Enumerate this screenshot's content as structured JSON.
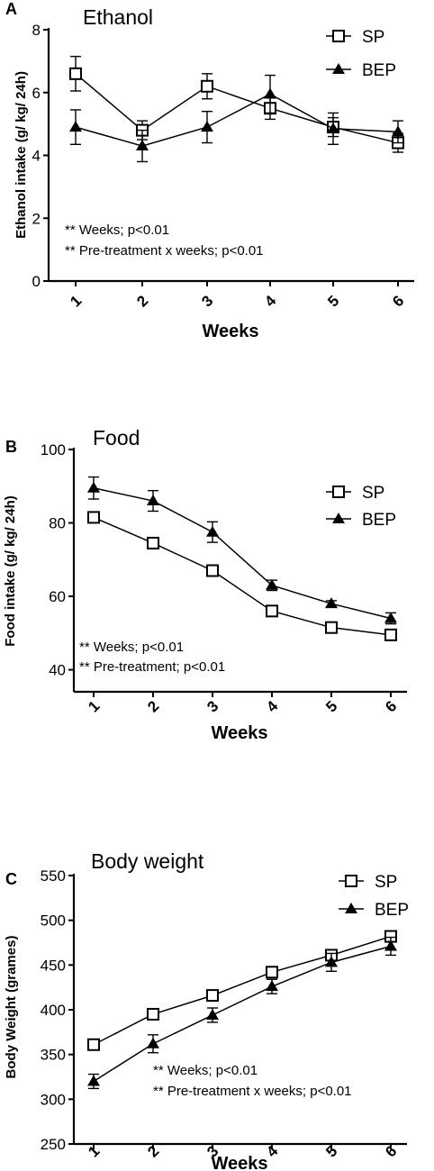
{
  "chart_data": [
    {
      "type": "line",
      "panel": "A",
      "title": "Ethanol",
      "xlabel": "Weeks",
      "ylabel": "Ethanol intake (g/ kg/ 24h)",
      "categories": [
        "1",
        "2",
        "3",
        "4",
        "5",
        "6"
      ],
      "ylim": [
        0,
        8
      ],
      "yticks": [
        "0",
        "2",
        "4",
        "6",
        "8"
      ],
      "series": [
        {
          "name": "SP",
          "values": [
            6.6,
            4.8,
            6.2,
            5.5,
            4.9,
            4.4
          ],
          "errors": [
            0.55,
            0.3,
            0.4,
            0.35,
            0.3,
            0.3
          ]
        },
        {
          "name": "BEP",
          "values": [
            4.9,
            4.3,
            4.9,
            5.95,
            4.85,
            4.75
          ],
          "errors": [
            0.55,
            0.5,
            0.5,
            0.6,
            0.5,
            0.35
          ]
        }
      ],
      "annotations": [
        "** Weeks; p<0.01",
        "** Pre-treatment x weeks; p<0.01"
      ],
      "legend_position": "top-right"
    },
    {
      "type": "line",
      "panel": "B",
      "title": "Food",
      "xlabel": "Weeks",
      "ylabel": "Food intake (g/ kg/ 24h)",
      "categories": [
        "1",
        "2",
        "3",
        "4",
        "5",
        "6"
      ],
      "ylim": [
        34,
        100
      ],
      "yticks": [
        "40",
        "60",
        "80",
        "100"
      ],
      "series": [
        {
          "name": "SP",
          "values": [
            81.5,
            74.5,
            67,
            56,
            51.5,
            49.5
          ],
          "errors": [
            1.2,
            1.0,
            1.0,
            0.8,
            0.8,
            0.8
          ]
        },
        {
          "name": "BEP",
          "values": [
            89.5,
            86,
            77.5,
            63,
            58,
            54
          ],
          "errors": [
            3.0,
            2.8,
            2.8,
            1.4,
            0.8,
            1.5
          ]
        }
      ],
      "annotations": [
        "** Weeks; p<0.01",
        "** Pre-treatment; p<0.01"
      ],
      "legend_position": "top-right"
    },
    {
      "type": "line",
      "panel": "C",
      "title": "Body weight",
      "xlabel": "Weeks",
      "ylabel": "Body Weight (grames)",
      "categories": [
        "1",
        "2",
        "3",
        "4",
        "5",
        "6"
      ],
      "ylim": [
        250,
        550
      ],
      "yticks": [
        "250",
        "300",
        "350",
        "400",
        "450",
        "500",
        "550"
      ],
      "series": [
        {
          "name": "SP",
          "values": [
            361,
            395,
            416,
            442,
            461,
            482
          ],
          "errors": [
            4,
            4,
            5,
            5,
            5,
            5
          ]
        },
        {
          "name": "BEP",
          "values": [
            320,
            362,
            394,
            426,
            453,
            471
          ],
          "errors": [
            8,
            10,
            8,
            8,
            10,
            10
          ]
        }
      ],
      "annotations": [
        "** Weeks; p<0.01",
        "** Pre-treatment x weeks; p<0.01"
      ],
      "legend_position": "top-right"
    }
  ]
}
